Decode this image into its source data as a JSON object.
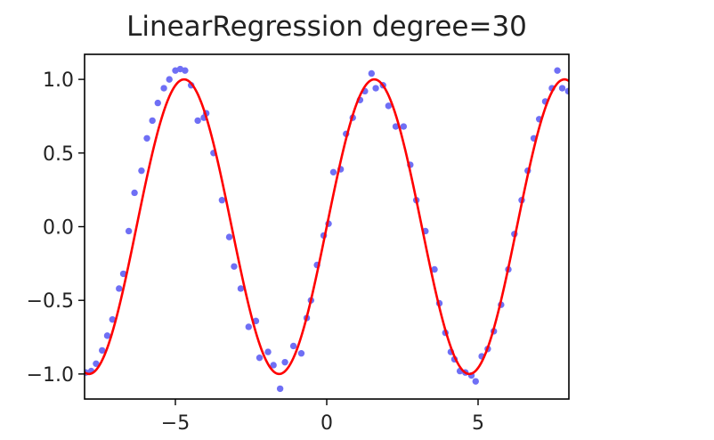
{
  "chart_data": {
    "type": "scatter",
    "title": "LinearRegression degree=30",
    "xlabel": "",
    "ylabel": "",
    "xlim": [
      -8,
      8
    ],
    "ylim": [
      -1.17,
      1.17
    ],
    "grid": false,
    "legend": "none",
    "x_ticks": [
      -5,
      0,
      5
    ],
    "x_tick_labels": [
      "−5",
      "0",
      "5"
    ],
    "y_ticks": [
      1.0,
      0.5,
      0.0,
      -0.5,
      -1.0
    ],
    "y_tick_labels": [
      "1.0",
      "0.5",
      "0.0",
      "−0.5",
      "−1.0"
    ],
    "series": [
      {
        "kind": "scatter",
        "color": "#6f6ff5",
        "points": [
          [
            -7.96,
            -0.99
          ],
          [
            -7.78,
            -0.98
          ],
          [
            -7.62,
            -0.93
          ],
          [
            -7.42,
            -0.84
          ],
          [
            -7.25,
            -0.74
          ],
          [
            -7.08,
            -0.63
          ],
          [
            -6.86,
            -0.42
          ],
          [
            -6.72,
            -0.32
          ],
          [
            -6.54,
            -0.03
          ],
          [
            -6.35,
            0.23
          ],
          [
            -6.12,
            0.38
          ],
          [
            -5.94,
            0.6
          ],
          [
            -5.76,
            0.72
          ],
          [
            -5.58,
            0.84
          ],
          [
            -5.38,
            0.94
          ],
          [
            -5.2,
            1.0
          ],
          [
            -5.0,
            1.06
          ],
          [
            -4.84,
            1.07
          ],
          [
            -4.68,
            1.06
          ],
          [
            -4.48,
            0.96
          ],
          [
            -4.26,
            0.72
          ],
          [
            -4.06,
            0.74
          ],
          [
            -3.98,
            0.77
          ],
          [
            -3.74,
            0.5
          ],
          [
            -3.46,
            0.18
          ],
          [
            -3.22,
            -0.07
          ],
          [
            -3.06,
            -0.27
          ],
          [
            -2.84,
            -0.42
          ],
          [
            -2.58,
            -0.68
          ],
          [
            -2.34,
            -0.64
          ],
          [
            -2.22,
            -0.89
          ],
          [
            -1.94,
            -0.85
          ],
          [
            -1.76,
            -0.94
          ],
          [
            -1.54,
            -1.1
          ],
          [
            -1.38,
            -0.92
          ],
          [
            -1.1,
            -0.81
          ],
          [
            -0.84,
            -0.86
          ],
          [
            -0.66,
            -0.62
          ],
          [
            -0.52,
            -0.5
          ],
          [
            -0.32,
            -0.26
          ],
          [
            -0.1,
            -0.06
          ],
          [
            0.06,
            0.02
          ],
          [
            0.22,
            0.37
          ],
          [
            0.46,
            0.39
          ],
          [
            0.64,
            0.63
          ],
          [
            0.86,
            0.74
          ],
          [
            1.1,
            0.86
          ],
          [
            1.26,
            0.92
          ],
          [
            1.48,
            1.04
          ],
          [
            1.62,
            0.94
          ],
          [
            1.86,
            0.96
          ],
          [
            2.04,
            0.82
          ],
          [
            2.28,
            0.68
          ],
          [
            2.54,
            0.68
          ],
          [
            2.76,
            0.42
          ],
          [
            2.96,
            0.18
          ],
          [
            3.26,
            -0.03
          ],
          [
            3.56,
            -0.29
          ],
          [
            3.72,
            -0.52
          ],
          [
            3.92,
            -0.72
          ],
          [
            4.1,
            -0.85
          ],
          [
            4.22,
            -0.9
          ],
          [
            4.4,
            -0.98
          ],
          [
            4.58,
            -0.99
          ],
          [
            4.78,
            -1.01
          ],
          [
            4.92,
            -1.05
          ],
          [
            5.12,
            -0.88
          ],
          [
            5.32,
            -0.83
          ],
          [
            5.52,
            -0.71
          ],
          [
            5.76,
            -0.53
          ],
          [
            6.0,
            -0.29
          ],
          [
            6.2,
            -0.05
          ],
          [
            6.44,
            0.18
          ],
          [
            6.64,
            0.38
          ],
          [
            6.84,
            0.6
          ],
          [
            7.02,
            0.73
          ],
          [
            7.22,
            0.85
          ],
          [
            7.44,
            0.94
          ],
          [
            7.62,
            1.06
          ],
          [
            7.78,
            0.94
          ],
          [
            7.98,
            0.92
          ]
        ]
      },
      {
        "kind": "line",
        "color": "#ff0000",
        "function": "sin",
        "samples": 320
      }
    ]
  }
}
